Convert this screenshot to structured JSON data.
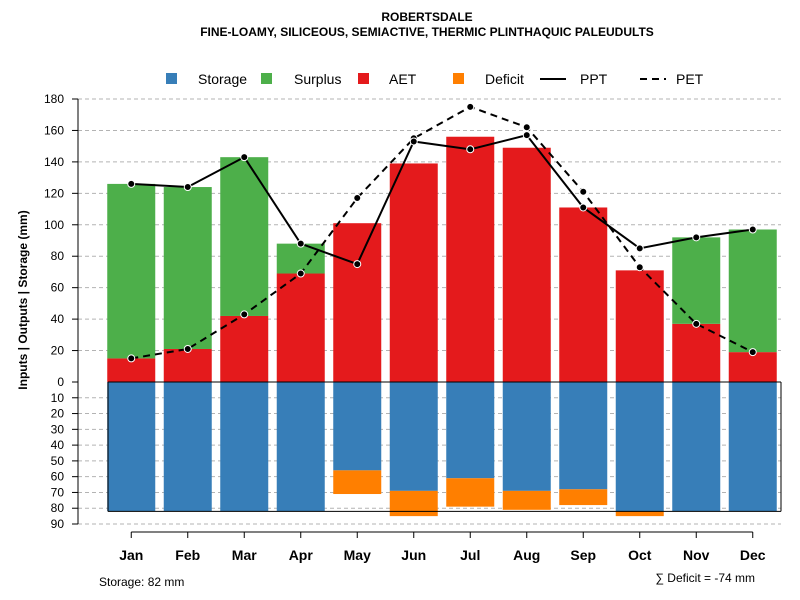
{
  "chart_data": {
    "type": "bar",
    "title": "ROBERTSDALE",
    "subtitle": "FINE-LOAMY, SILICEOUS, SEMIACTIVE, THERMIC PLINTHAQUIC PALEUDULTS",
    "ylabel": "Inputs | Outputs | Storage    (mm)",
    "categories": [
      "Jan",
      "Feb",
      "Mar",
      "Apr",
      "May",
      "Jun",
      "Jul",
      "Aug",
      "Sep",
      "Oct",
      "Nov",
      "Dec"
    ],
    "ylim_upper": [
      0,
      180
    ],
    "ylim_lower": [
      0,
      90
    ],
    "yticks_upper": [
      "0",
      "20",
      "40",
      "60",
      "80",
      "100",
      "120",
      "140",
      "160",
      "180"
    ],
    "yticks_lower": [
      "10",
      "20",
      "30",
      "40",
      "50",
      "60",
      "70",
      "80",
      "90"
    ],
    "legend": {
      "storage": "Storage",
      "surplus": "Surplus",
      "aet": "AET",
      "deficit": "Deficit",
      "ppt": "PPT",
      "pet": "PET"
    },
    "colors": {
      "storage": "#377eb8",
      "surplus": "#4daf4a",
      "aet": "#e41a1c",
      "deficit": "#ff7f00",
      "line": "#000000",
      "grid": "#b3b3b3"
    },
    "series": {
      "aet": [
        15,
        21,
        42,
        69,
        101,
        139,
        156,
        149,
        111,
        71,
        37,
        19
      ],
      "surplus": [
        111,
        103,
        101,
        19,
        0,
        0,
        0,
        0,
        0,
        0,
        55,
        78
      ],
      "ppt": [
        126,
        124,
        143,
        88,
        75,
        153,
        148,
        157,
        111,
        85,
        92,
        97
      ],
      "pet": [
        15,
        21,
        43,
        69,
        117,
        155,
        175,
        162,
        121,
        73,
        37,
        19
      ],
      "storage": [
        82,
        82,
        82,
        82,
        56,
        69,
        61,
        69,
        68,
        82,
        82,
        82
      ],
      "deficit": [
        0,
        0,
        0,
        0,
        15,
        16,
        18,
        12,
        10,
        3,
        0,
        0
      ]
    },
    "storage_note": "Storage: 82 mm",
    "deficit_note": "∑ Deficit = -74 mm"
  }
}
